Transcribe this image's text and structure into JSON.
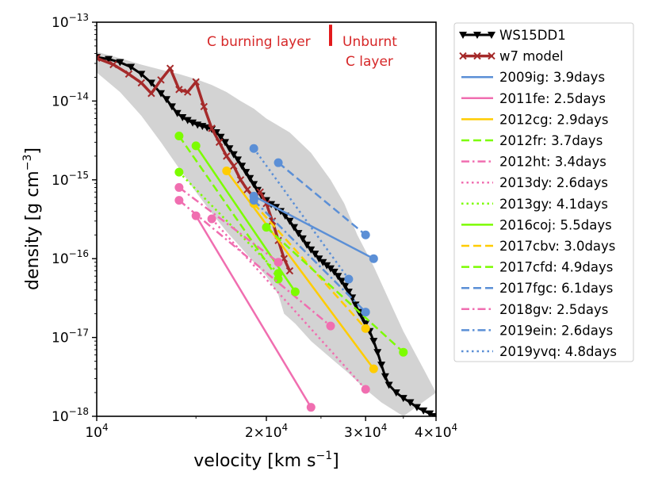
{
  "chart_data": {
    "type": "line",
    "title": "",
    "xlabel": "velocity [km s$^{-1}$]",
    "ylabel": "density [g cm$^{-3}$]",
    "xscale": "log",
    "yscale": "log",
    "xlim": [
      10000,
      40000
    ],
    "ylim": [
      1e-18,
      1e-13
    ],
    "x_ticks": [
      {
        "value": 10000,
        "label": "10^4"
      },
      {
        "value": 20000,
        "label": "2×10^4"
      },
      {
        "value": 30000,
        "label": "3×10^4"
      },
      {
        "value": 40000,
        "label": "4×10^4"
      }
    ],
    "y_ticks": [
      {
        "value": 1e-13,
        "label": "10^-13"
      },
      {
        "value": 1e-14,
        "label": "10^-14"
      },
      {
        "value": 1e-15,
        "label": "10^-15"
      },
      {
        "value": 1e-16,
        "label": "10^-16"
      },
      {
        "value": 1e-17,
        "label": "10^-17"
      },
      {
        "value": 1e-18,
        "label": "10^-18"
      }
    ],
    "grid": false,
    "legend_position": "outside-right",
    "annotations": [
      {
        "text": "C burning layer",
        "color": "#d62728"
      },
      {
        "text": "Unburnt",
        "color": "#d62728"
      },
      {
        "text": "C layer",
        "color": "#d62728"
      }
    ],
    "marker_line": {
      "x": 26000,
      "y_range": [
        5e-14,
        9.3e-14
      ],
      "color": "#e31a1c"
    },
    "band": {
      "color": "#d3d3d3",
      "upper": [
        [
          10000,
          4.2e-14
        ],
        [
          11000,
          3.5e-14
        ],
        [
          12000,
          2.9e-14
        ],
        [
          13000,
          2.5e-14
        ],
        [
          14000,
          2.2e-14
        ],
        [
          15000,
          1.9e-14
        ],
        [
          16000,
          1.6e-14
        ],
        [
          17000,
          1.3e-14
        ],
        [
          18000,
          1e-14
        ],
        [
          19000,
          8e-15
        ],
        [
          20000,
          6e-15
        ],
        [
          22000,
          4e-15
        ],
        [
          24000,
          2.2e-15
        ],
        [
          26000,
          1e-15
        ],
        [
          27500,
          5e-16
        ],
        [
          29000,
          2e-16
        ],
        [
          31000,
          8e-17
        ],
        [
          33000,
          3e-17
        ],
        [
          35000,
          1.2e-17
        ],
        [
          38000,
          4e-18
        ],
        [
          40000,
          2e-18
        ]
      ],
      "lower": [
        [
          10000,
          2.3e-14
        ],
        [
          11000,
          1.3e-14
        ],
        [
          12000,
          6.5e-15
        ],
        [
          13000,
          3e-15
        ],
        [
          14000,
          1.4e-15
        ],
        [
          15000,
          7e-16
        ],
        [
          16000,
          3.8e-16
        ],
        [
          17000,
          2.2e-16
        ],
        [
          18000,
          1.4e-16
        ],
        [
          19000,
          9e-17
        ],
        [
          20000,
          6e-17
        ],
        [
          21000,
          3.5e-17
        ],
        [
          21500,
          2e-17
        ],
        [
          22500,
          1.5e-17
        ],
        [
          24000,
          9e-18
        ],
        [
          26000,
          5.5e-18
        ],
        [
          28000,
          3.5e-18
        ],
        [
          30000,
          2.2e-18
        ],
        [
          32000,
          1.5e-18
        ],
        [
          35000,
          1e-18
        ]
      ]
    },
    "series": [
      {
        "name": "WS15DD1",
        "color": "#000000",
        "dash": "solid",
        "marker": "triangle-down",
        "width": 3,
        "points": [
          [
            10000,
            3.6e-14
          ],
          [
            10500,
            3.4e-14
          ],
          [
            11000,
            3.1e-14
          ],
          [
            11500,
            2.7e-14
          ],
          [
            12000,
            2.2e-14
          ],
          [
            12500,
            1.7e-14
          ],
          [
            13000,
            1.25e-14
          ],
          [
            13300,
            1.05e-14
          ],
          [
            13600,
            8.5e-15
          ],
          [
            13900,
            7e-15
          ],
          [
            14200,
            6.2e-15
          ],
          [
            14500,
            5.7e-15
          ],
          [
            14800,
            5.3e-15
          ],
          [
            15100,
            5e-15
          ],
          [
            15400,
            4.8e-15
          ],
          [
            15700,
            4.6e-15
          ],
          [
            16000,
            4.4e-15
          ],
          [
            16300,
            4e-15
          ],
          [
            16600,
            3.5e-15
          ],
          [
            16900,
            3e-15
          ],
          [
            17200,
            2.5e-15
          ],
          [
            17500,
            2.1e-15
          ],
          [
            17800,
            1.8e-15
          ],
          [
            18100,
            1.5e-15
          ],
          [
            18400,
            1.25e-15
          ],
          [
            18700,
            1.05e-15
          ],
          [
            19000,
            8.8e-16
          ],
          [
            19300,
            7.4e-16
          ],
          [
            19600,
            6.3e-16
          ],
          [
            20000,
            5.5e-16
          ],
          [
            20400,
            4.9e-16
          ],
          [
            20800,
            4.5e-16
          ],
          [
            21200,
            4e-16
          ],
          [
            21600,
            3.5e-16
          ],
          [
            22000,
            3e-16
          ],
          [
            22400,
            2.5e-16
          ],
          [
            22800,
            2.1e-16
          ],
          [
            23200,
            1.8e-16
          ],
          [
            23600,
            1.5e-16
          ],
          [
            24000,
            1.3e-16
          ],
          [
            24400,
            1.15e-16
          ],
          [
            24800,
            1e-16
          ],
          [
            25200,
            9e-17
          ],
          [
            25600,
            8.2e-17
          ],
          [
            26000,
            7.5e-17
          ],
          [
            26400,
            6.8e-17
          ],
          [
            26800,
            6e-17
          ],
          [
            27200,
            5.2e-17
          ],
          [
            27600,
            4.5e-17
          ],
          [
            28000,
            3.8e-17
          ],
          [
            28400,
            3.2e-17
          ],
          [
            28800,
            2.6e-17
          ],
          [
            29200,
            2.1e-17
          ],
          [
            29600,
            1.8e-17
          ],
          [
            30000,
            1.5e-17
          ],
          [
            30500,
            1.2e-17
          ],
          [
            31000,
            9e-18
          ],
          [
            31500,
            6.5e-18
          ],
          [
            32000,
            4.5e-18
          ],
          [
            32500,
            3.2e-18
          ],
          [
            33000,
            2.5e-18
          ],
          [
            34000,
            2e-18
          ],
          [
            35000,
            1.7e-18
          ],
          [
            36000,
            1.5e-18
          ],
          [
            37000,
            1.3e-18
          ],
          [
            38000,
            1.18e-18
          ],
          [
            39000,
            1.08e-18
          ],
          [
            40000,
            1e-18
          ]
        ]
      },
      {
        "name": "w7 model",
        "color": "#a52a2a",
        "dash": "solid",
        "marker": "x",
        "width": 3.5,
        "points": [
          [
            10000,
            3.5e-14
          ],
          [
            10700,
            2.9e-14
          ],
          [
            11400,
            2.2e-14
          ],
          [
            12000,
            1.7e-14
          ],
          [
            12500,
            1.25e-14
          ],
          [
            13000,
            1.85e-14
          ],
          [
            13500,
            2.6e-14
          ],
          [
            14000,
            1.4e-14
          ],
          [
            14500,
            1.3e-14
          ],
          [
            15000,
            1.75e-14
          ],
          [
            15500,
            8.5e-15
          ],
          [
            16000,
            4.5e-15
          ],
          [
            16500,
            3e-15
          ],
          [
            17000,
            2e-15
          ],
          [
            17500,
            1.5e-15
          ],
          [
            18000,
            1e-15
          ],
          [
            18500,
            7.5e-16
          ],
          [
            19000,
            6e-16
          ],
          [
            19500,
            7e-16
          ],
          [
            20000,
            5e-16
          ],
          [
            20500,
            3e-16
          ],
          [
            21000,
            1.7e-16
          ],
          [
            21500,
            1e-16
          ],
          [
            22000,
            7e-17
          ]
        ]
      },
      {
        "name": "2009ig: 3.9days",
        "color": "#5b8fd6",
        "dash": "solid",
        "marker": "circle",
        "width": 2.5,
        "points": [
          [
            19000,
            6.2e-16
          ],
          [
            31000,
            1e-16
          ]
        ]
      },
      {
        "name": "2011fe: 2.5days",
        "color": "#f06eb0",
        "dash": "solid",
        "marker": "circle",
        "width": 2.5,
        "points": [
          [
            15000,
            3.5e-16
          ],
          [
            24000,
            1.3e-18
          ]
        ]
      },
      {
        "name": "2012cg: 2.9days",
        "color": "#ffcc00",
        "dash": "solid",
        "marker": "circle",
        "width": 2.5,
        "points": [
          [
            17000,
            1.3e-15
          ],
          [
            31000,
            4e-18
          ]
        ]
      },
      {
        "name": "2012fr: 3.7days",
        "color": "#7cfc00",
        "dash": "dashed",
        "marker": "circle",
        "width": 2.5,
        "points": [
          [
            14000,
            3.6e-15
          ],
          [
            21000,
            5.5e-17
          ]
        ]
      },
      {
        "name": "2012ht: 3.4days",
        "color": "#f06eb0",
        "dash": "dashdot",
        "marker": "circle",
        "width": 2.5,
        "points": [
          [
            14000,
            5.5e-16
          ],
          [
            26000,
            1.4e-17
          ]
        ]
      },
      {
        "name": "2013dy: 2.6days",
        "color": "#f06eb0",
        "dash": "dotted",
        "marker": "circle",
        "width": 2.5,
        "points": [
          [
            16000,
            3.2e-16
          ],
          [
            30000,
            2.2e-18
          ]
        ]
      },
      {
        "name": "2013gy: 4.1days",
        "color": "#7cfc00",
        "dash": "dotted",
        "marker": "circle",
        "width": 2.5,
        "points": [
          [
            14000,
            1.25e-15
          ],
          [
            21000,
            6.5e-17
          ]
        ]
      },
      {
        "name": "2016coj: 5.5days",
        "color": "#7cfc00",
        "dash": "solid",
        "marker": "circle",
        "width": 2.5,
        "points": [
          [
            15000,
            2.7e-15
          ],
          [
            22500,
            3.8e-17
          ]
        ]
      },
      {
        "name": "2017cbv: 3.0days",
        "color": "#ffcc00",
        "dash": "dashed",
        "marker": "circle",
        "width": 2.5,
        "points": [
          [
            19000,
            5e-16
          ],
          [
            30000,
            1.3e-17
          ]
        ]
      },
      {
        "name": "2017cfd: 4.9days",
        "color": "#7cfc00",
        "dash": "dashed",
        "marker": "circle",
        "width": 2.5,
        "points": [
          [
            20000,
            2.5e-16
          ],
          [
            35000,
            6.5e-18
          ]
        ]
      },
      {
        "name": "2017fgc: 6.1days",
        "color": "#5b8fd6",
        "dash": "dashed",
        "marker": "circle",
        "width": 2.5,
        "points": [
          [
            21000,
            1.65e-15
          ],
          [
            30000,
            2e-16
          ]
        ]
      },
      {
        "name": "2018gv: 2.5days",
        "color": "#f06eb0",
        "dash": "dashdot",
        "marker": "circle",
        "width": 2.5,
        "points": [
          [
            14000,
            8e-16
          ],
          [
            21000,
            9e-17
          ]
        ]
      },
      {
        "name": "2019ein: 2.6days",
        "color": "#5b8fd6",
        "dash": "dashdot",
        "marker": "circle",
        "width": 2.5,
        "points": [
          [
            19000,
            5.5e-16
          ],
          [
            30000,
            2.1e-17
          ]
        ]
      },
      {
        "name": "2019yvq: 4.8days",
        "color": "#5b8fd6",
        "dash": "dotted",
        "marker": "circle",
        "width": 2.5,
        "points": [
          [
            19000,
            2.5e-15
          ],
          [
            28000,
            5.5e-17
          ]
        ]
      }
    ]
  }
}
